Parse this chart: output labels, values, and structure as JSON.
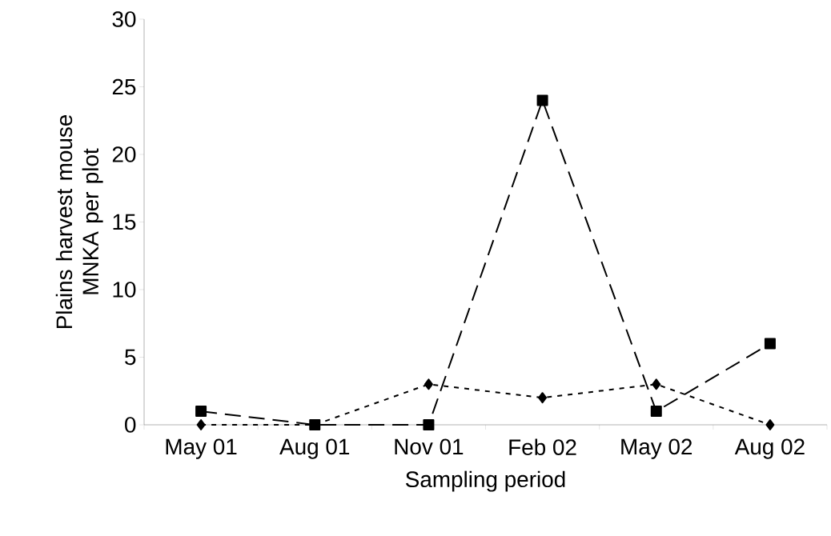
{
  "chart_data": {
    "type": "line",
    "xlabel": "Sampling period",
    "ylabel": "Plains harvest mouse MNKA per plot",
    "categories": [
      "May 01",
      "Aug 01",
      "Nov 01",
      "Feb 02",
      "May 02",
      "Aug 02"
    ],
    "ylim": [
      0,
      30
    ],
    "yticks": [
      0,
      5,
      10,
      15,
      20,
      25,
      30
    ],
    "grid": false,
    "series": [
      {
        "color": "#000000",
        "marker": "square",
        "line_style": "dashed",
        "values": [
          1,
          0,
          0,
          24,
          1,
          6
        ]
      },
      {
        "color": "#000000",
        "marker": "diamond",
        "line_style": "dotted",
        "values": [
          0,
          0,
          3,
          2,
          3,
          0
        ]
      }
    ]
  }
}
